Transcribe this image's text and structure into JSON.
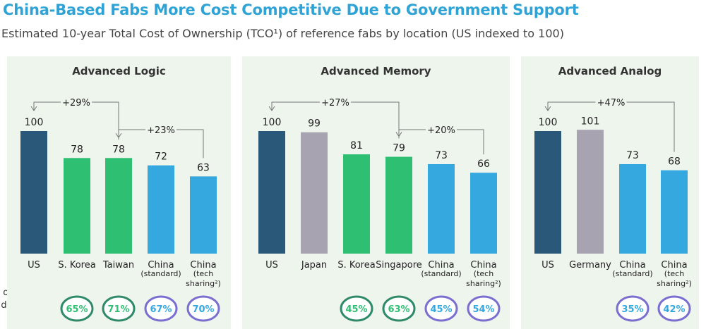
{
  "title": "China-Based Fabs More Cost Competitive Due to Government Support",
  "subtitle": "Estimated 10-year Total Cost of Ownership (TCO¹) of reference fabs by location (US indexed to 100)",
  "gap_label": [
    "of TCO gap",
    "due  to Gov.",
    "incentives"
  ],
  "colors": {
    "us": "#2a5878",
    "peer": "#a8a3b0",
    "competitor": "#2fbf72",
    "china": "#35a8e0",
    "panel": "#eef5ec"
  },
  "chart_data": [
    {
      "type": "bar",
      "title": "Advanced Logic",
      "categories": [
        "US",
        "S. Korea",
        "Taiwan",
        "China|(standard)",
        "China|(tech|sharing²)"
      ],
      "values": [
        100,
        78,
        78,
        72,
        63
      ],
      "color_keys": [
        "us",
        "competitor",
        "competitor",
        "china",
        "china"
      ],
      "gap_share": [
        "",
        "65%",
        "71%",
        "67%",
        "70%"
      ],
      "annotations": [
        {
          "label": "+29%",
          "from": 0,
          "to": 2
        },
        {
          "label": "+23%",
          "from": 2,
          "to": 4
        }
      ]
    },
    {
      "type": "bar",
      "title": "Advanced Memory",
      "categories": [
        "US",
        "Japan",
        "S. Korea",
        "Singapore",
        "China|(standard)",
        "China|(tech|sharing²)"
      ],
      "values": [
        100,
        99,
        81,
        79,
        73,
        66
      ],
      "color_keys": [
        "us",
        "peer",
        "competitor",
        "competitor",
        "china",
        "china"
      ],
      "gap_share": [
        "",
        "",
        "45%",
        "63%",
        "45%",
        "54%"
      ],
      "annotations": [
        {
          "label": "+27%",
          "from": 0,
          "to": 3
        },
        {
          "label": "+20%",
          "from": 3,
          "to": 5
        }
      ]
    },
    {
      "type": "bar",
      "title": "Advanced Analog",
      "categories": [
        "US",
        "Germany",
        "China|(standard)",
        "China|(tech|sharing²)"
      ],
      "values": [
        100,
        101,
        73,
        68
      ],
      "color_keys": [
        "us",
        "peer",
        "china",
        "china"
      ],
      "gap_share": [
        "",
        "",
        "35%",
        "42%"
      ],
      "annotations": [
        {
          "label": "+47%",
          "from": 0,
          "to": 3
        }
      ]
    }
  ]
}
